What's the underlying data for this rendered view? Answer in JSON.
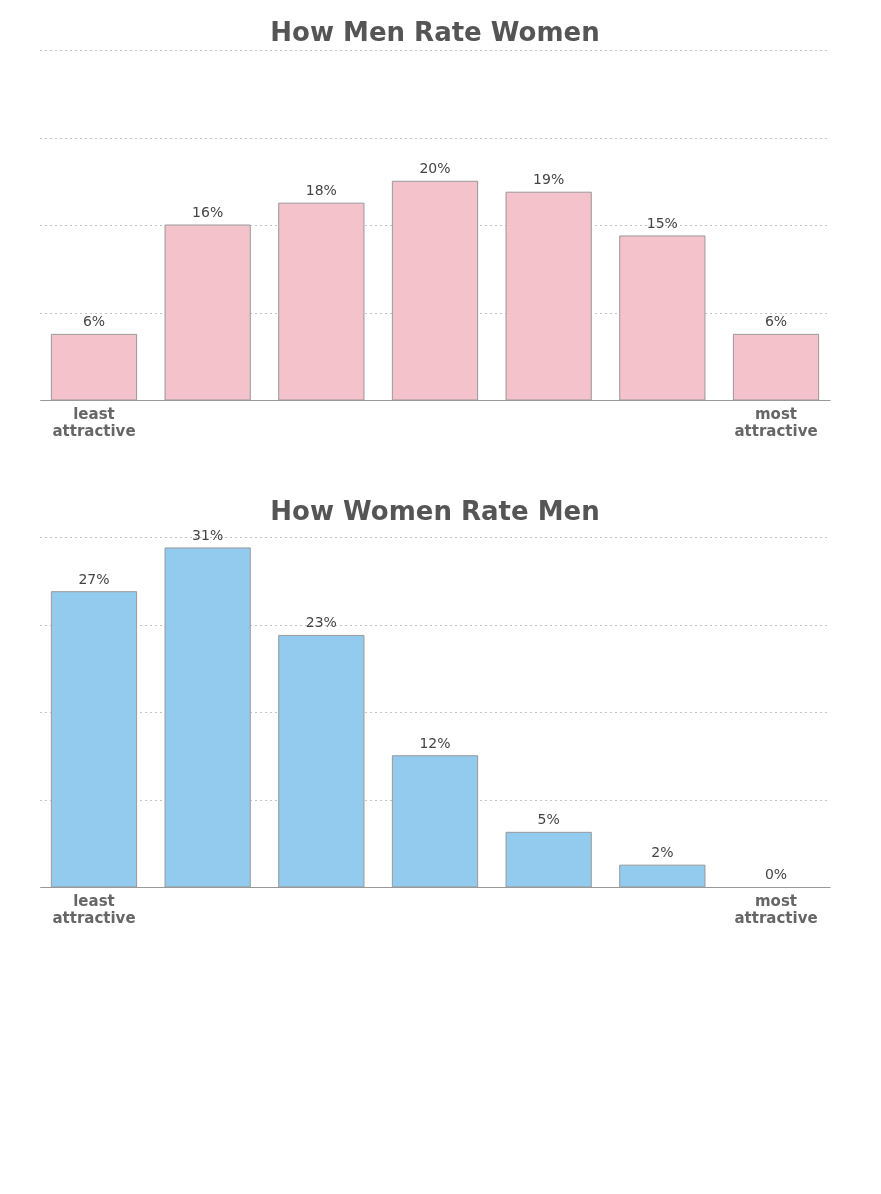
{
  "chart_data": [
    {
      "type": "bar",
      "title": "How Men Rate Women",
      "categories": [
        "least attractive",
        null,
        null,
        null,
        null,
        null,
        "most attractive"
      ],
      "values": [
        6,
        16,
        18,
        20,
        19,
        15,
        6
      ],
      "value_labels": [
        "6%",
        "16%",
        "18%",
        "20%",
        "19%",
        "15%",
        "6%"
      ],
      "color": "#f4c2cb",
      "ylim": [
        0,
        32
      ],
      "yticks": [
        {
          "value": 0,
          "label": null
        },
        {
          "value": 8,
          "label": null
        },
        {
          "value": 16,
          "label": null
        },
        {
          "value": 24,
          "label": null
        },
        {
          "value": 32,
          "label": null
        }
      ],
      "grid": "y",
      "tick_labels": "x"
    },
    {
      "type": "bar",
      "title": "How Women Rate Men",
      "categories": [
        "least attractive",
        null,
        null,
        null,
        null,
        null,
        "most attractive"
      ],
      "values": [
        27,
        31,
        23,
        12,
        5,
        2,
        0
      ],
      "value_labels": [
        "27%",
        "31%",
        "23%",
        "12%",
        "5%",
        "2%",
        "0%"
      ],
      "color": "#92cbee",
      "ylim": [
        0,
        32
      ],
      "yticks": [
        {
          "value": 0,
          "label": null
        },
        {
          "value": 8,
          "label": null
        },
        {
          "value": 16,
          "label": null
        },
        {
          "value": 24,
          "label": null
        },
        {
          "value": 32,
          "label": null
        }
      ],
      "grid": "y",
      "tick_labels": "x"
    }
  ]
}
